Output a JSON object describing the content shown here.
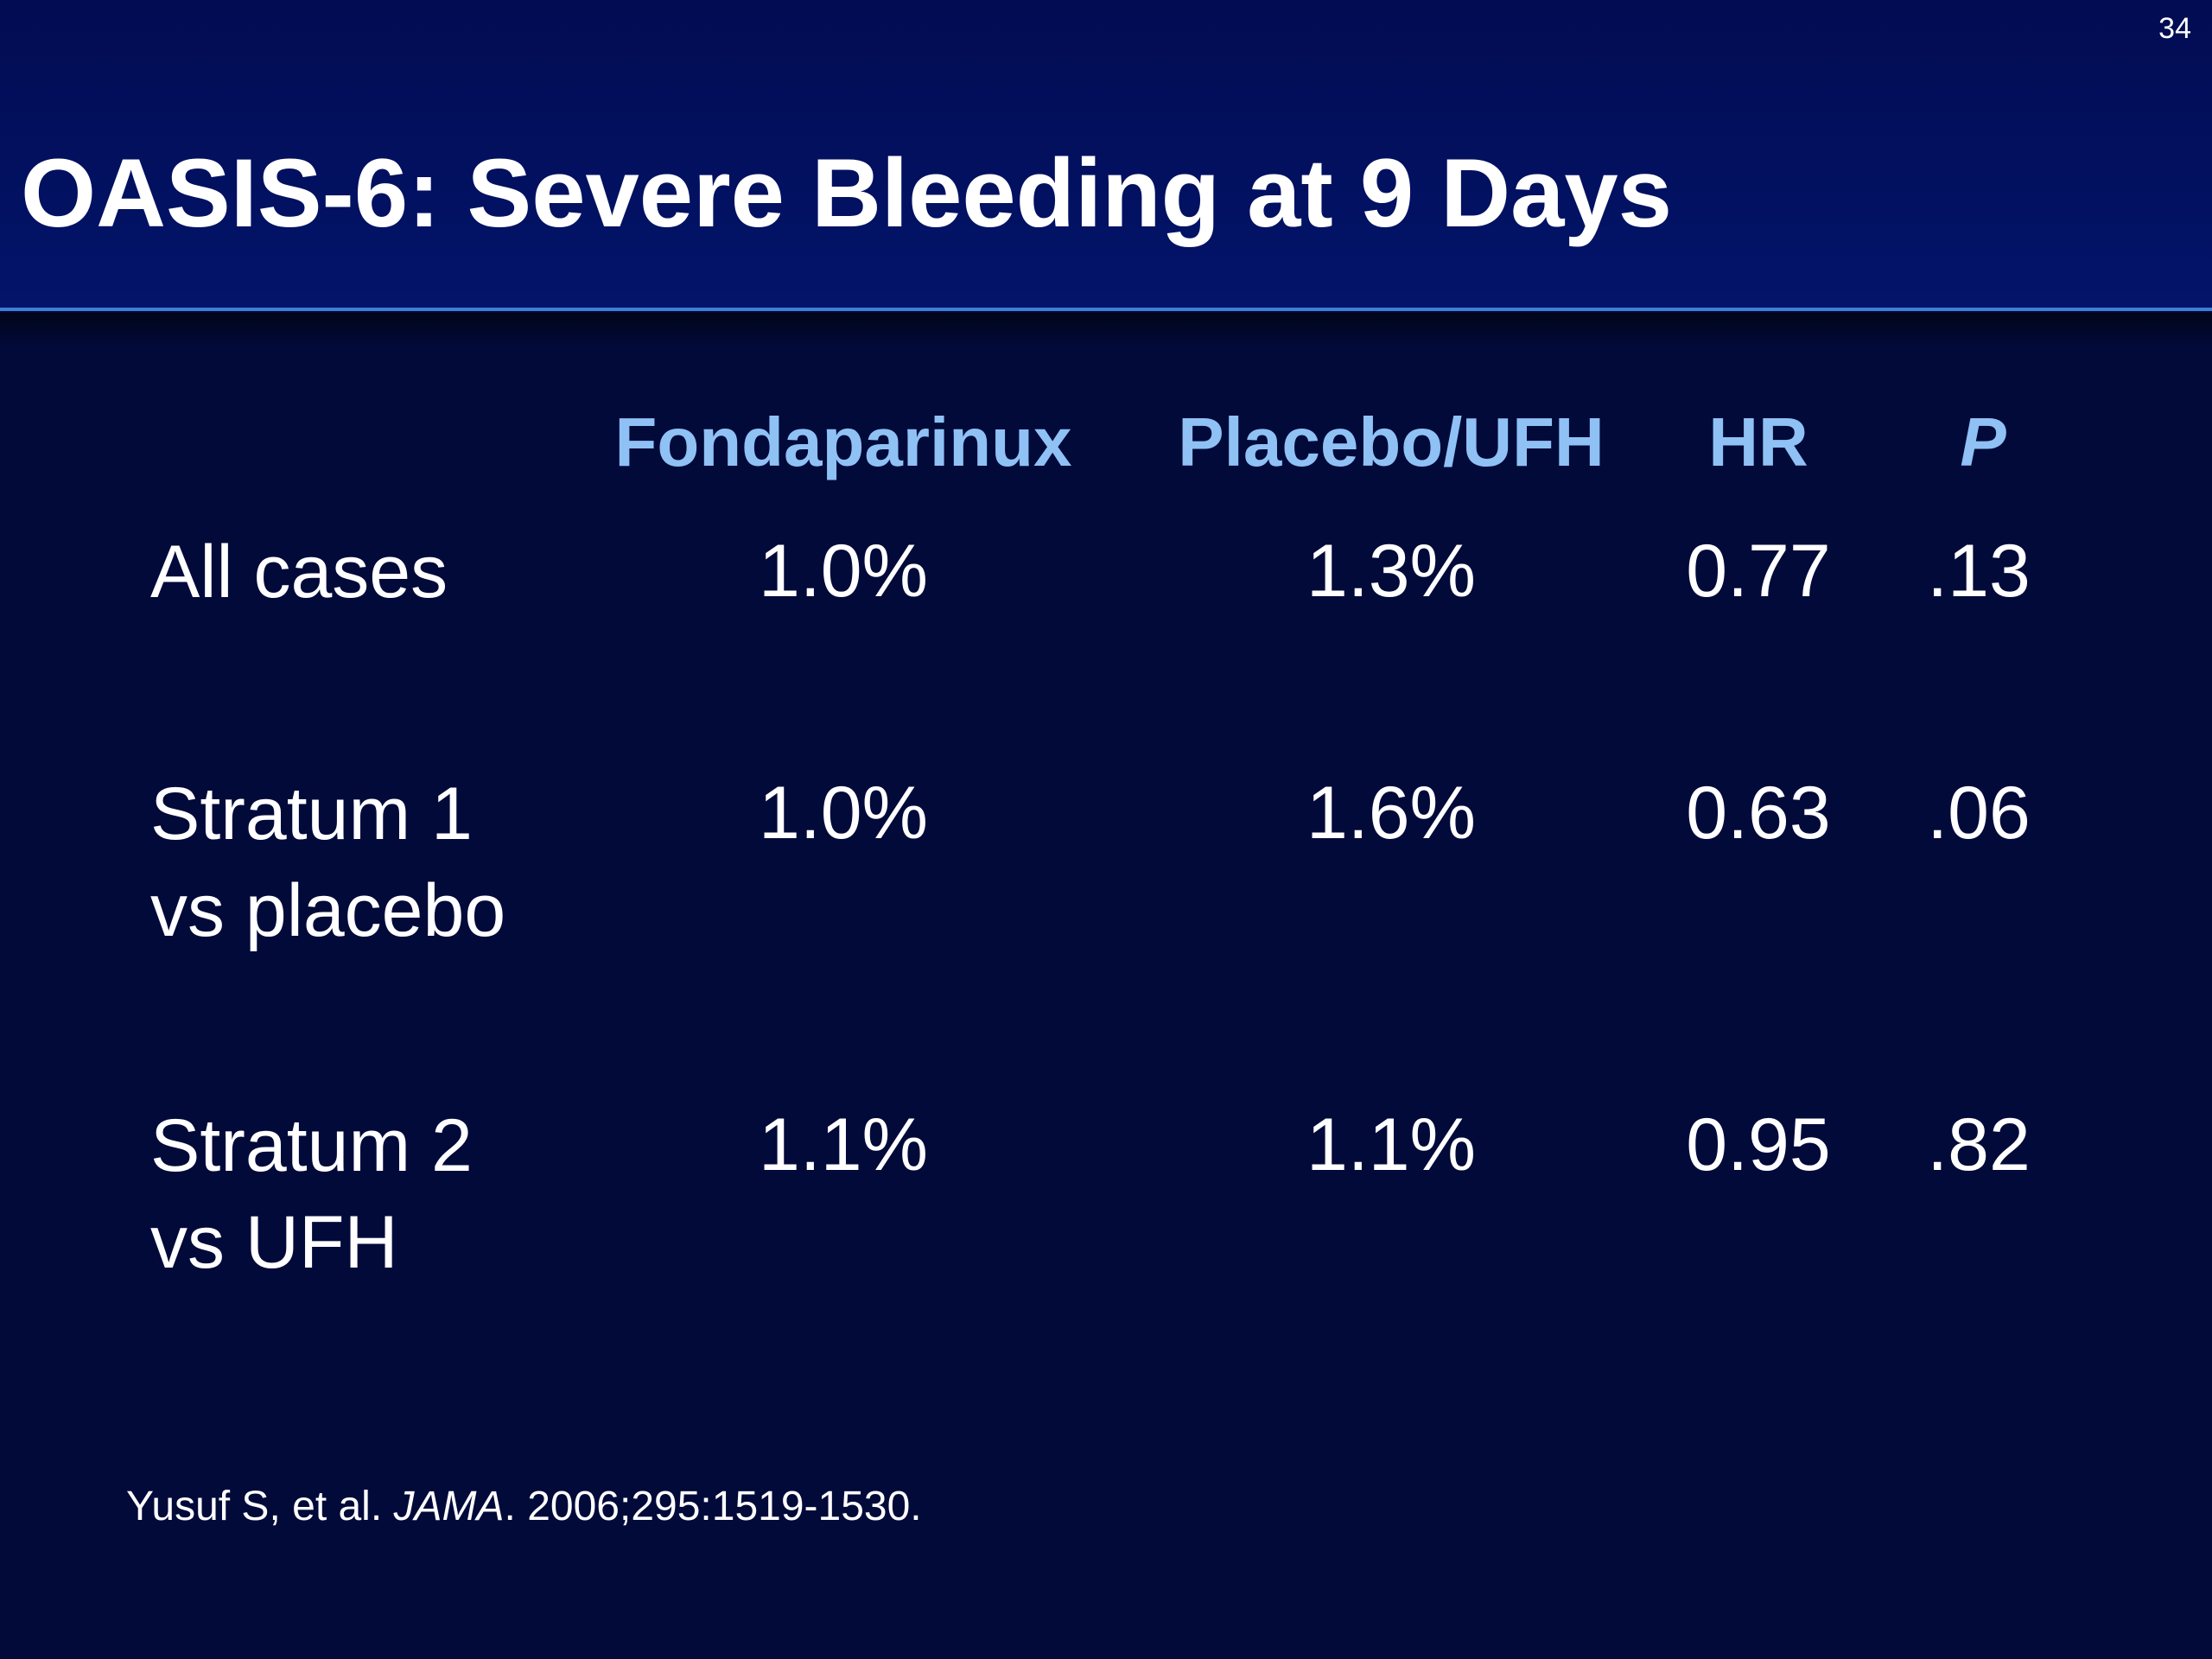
{
  "page_number": "34",
  "title": "OASIS-6: Severe Bleeding at 9 Days",
  "table": {
    "headers": {
      "fondaparinux": "Fondaparinux",
      "placebo_ufh": "Placebo/UFH",
      "hr": "HR",
      "p": "P"
    },
    "rows": [
      {
        "label_line1": "All cases",
        "label_line2": "",
        "fondaparinux": "1.0%",
        "placebo_ufh": "1.3%",
        "hr": "0.77",
        "p": ".13"
      },
      {
        "label_line1": "Stratum 1",
        "label_line2": "vs placebo",
        "fondaparinux": "1.0%",
        "placebo_ufh": "1.6%",
        "hr": "0.63",
        "p": ".06"
      },
      {
        "label_line1": "Stratum 2",
        "label_line2": "vs UFH",
        "fondaparinux": "1.1%",
        "placebo_ufh": "1.1%",
        "hr": "0.95",
        "p": ".82"
      }
    ]
  },
  "citation": {
    "authors": "Yusuf S, et al. ",
    "journal": "JAMA",
    "details": ". 2006;295:1519-1530."
  },
  "colors": {
    "background": "#020a3a",
    "header_background": "#02105f",
    "header_rule": "#3f7fd6",
    "column_header": "#8fc1f5",
    "text": "#ffffff"
  }
}
